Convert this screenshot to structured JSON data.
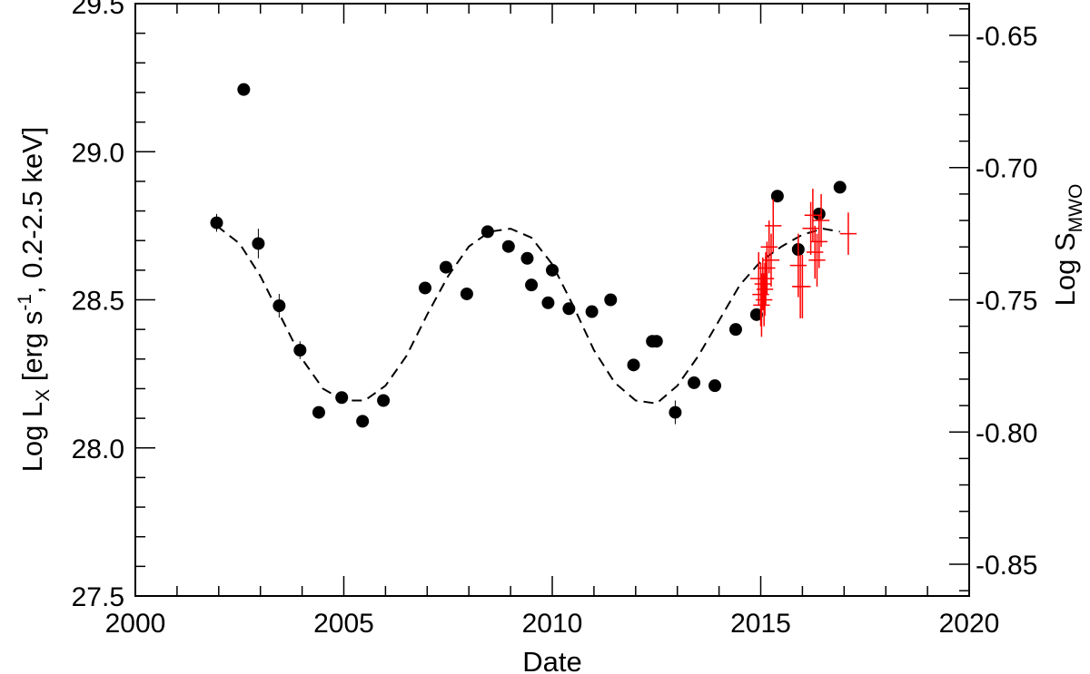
{
  "chart_data": {
    "type": "scatter",
    "xlabel": "Date",
    "ylabel_left": {
      "prefix": "Log L",
      "sub": "X",
      "mid1": " [erg s",
      "sup": "-1",
      "mid2": ", 0.2-2.5 keV]"
    },
    "ylabel_right": {
      "prefix": "Log S",
      "sub": "MWO"
    },
    "xlim": [
      2000,
      2020
    ],
    "ylim_left": [
      27.5,
      29.5
    ],
    "ylim_right": [
      -0.862,
      -0.638
    ],
    "x_ticks": [
      2000,
      2005,
      2010,
      2015,
      2020
    ],
    "x_tick_labels": [
      "2000",
      "2005",
      "2010",
      "2015",
      "2020"
    ],
    "y_left_ticks": [
      27.5,
      28.0,
      28.5,
      29.0,
      29.5
    ],
    "y_left_tick_labels": [
      "27.5",
      "28.0",
      "28.5",
      "29.0",
      "29.5"
    ],
    "y_right_ticks": [
      -0.85,
      -0.8,
      -0.75,
      -0.7,
      -0.65
    ],
    "y_right_tick_labels": [
      "-0.85",
      "-0.80",
      "-0.75",
      "-0.70",
      "-0.65"
    ],
    "series": [
      {
        "style": "filled-circle",
        "color": "#000000",
        "x": [
          2001.95,
          2002.6,
          2002.95,
          2003.45,
          2003.95,
          2004.4,
          2004.95,
          2005.45,
          2005.95,
          2006.95,
          2007.45,
          2007.95,
          2008.45,
          2008.95,
          2009.4,
          2009.5,
          2009.9,
          2010.0,
          2010.4,
          2010.95,
          2011.4,
          2011.95,
          2012.4,
          2012.5,
          2012.95,
          2013.4,
          2013.9,
          2014.4,
          2014.9,
          2015.4,
          2015.9,
          2016.4,
          2016.9
        ],
        "y": [
          28.76,
          29.21,
          28.69,
          28.48,
          28.33,
          28.12,
          28.17,
          28.09,
          28.16,
          28.54,
          28.61,
          28.52,
          28.73,
          28.68,
          28.64,
          28.55,
          28.49,
          28.6,
          28.47,
          28.46,
          28.5,
          28.28,
          28.36,
          28.36,
          28.12,
          28.22,
          28.21,
          28.4,
          28.45,
          28.85,
          28.67,
          28.79,
          28.88
        ],
        "yerr": [
          0.03,
          0.02,
          0.05,
          0.04,
          0.03,
          0.02,
          0.02,
          0.02,
          0.02,
          0.02,
          0.02,
          0.02,
          0.02,
          0.02,
          0.02,
          0.02,
          0.02,
          0.02,
          0.02,
          0.02,
          0.02,
          0.02,
          0.02,
          0.02,
          0.04,
          0.02,
          0.02,
          0.02,
          0.02,
          0.02,
          0.02,
          0.02,
          0.02
        ]
      },
      {
        "style": "cross-errorbar",
        "color": "#ff0000",
        "axis": "right",
        "x": [
          2014.95,
          2015.0,
          2015.02,
          2015.05,
          2015.08,
          2015.1,
          2015.12,
          2015.15,
          2015.2,
          2015.25,
          2015.3,
          2015.9,
          2015.95,
          2016.0,
          2016.2,
          2016.25,
          2016.3,
          2016.35,
          2016.4,
          2016.45,
          2017.1
        ],
        "y": [
          -0.742,
          -0.748,
          -0.752,
          -0.744,
          -0.75,
          -0.746,
          -0.742,
          -0.738,
          -0.73,
          -0.735,
          -0.722,
          -0.737,
          -0.745,
          -0.745,
          -0.723,
          -0.718,
          -0.732,
          -0.735,
          -0.728,
          -0.72,
          -0.725
        ],
        "yerr": [
          0.01,
          0.012,
          0.012,
          0.01,
          0.01,
          0.01,
          0.01,
          0.01,
          0.01,
          0.01,
          0.01,
          0.012,
          0.012,
          0.012,
          0.01,
          0.01,
          0.01,
          0.01,
          0.01,
          0.01,
          0.008
        ],
        "xerr": [
          0.2,
          0.2,
          0.2,
          0.2,
          0.2,
          0.2,
          0.2,
          0.2,
          0.2,
          0.2,
          0.2,
          0.2,
          0.2,
          0.2,
          0.2,
          0.2,
          0.2,
          0.2,
          0.2,
          0.2,
          0.2
        ]
      },
      {
        "style": "dashed-line",
        "color": "#000000",
        "x": [
          2001.95,
          2002.5,
          2003.0,
          2003.5,
          2004.0,
          2004.5,
          2005.0,
          2005.5,
          2006.0,
          2006.5,
          2007.0,
          2007.5,
          2008.0,
          2008.5,
          2009.0,
          2009.5,
          2010.0,
          2010.5,
          2011.0,
          2011.5,
          2012.0,
          2012.5,
          2013.0,
          2013.5,
          2014.0,
          2014.5,
          2015.0,
          2015.5,
          2016.0,
          2016.5,
          2016.9
        ],
        "y": [
          28.75,
          28.69,
          28.58,
          28.44,
          28.3,
          28.2,
          28.16,
          28.16,
          28.21,
          28.31,
          28.45,
          28.58,
          28.68,
          28.73,
          28.74,
          28.71,
          28.62,
          28.48,
          28.33,
          28.22,
          28.16,
          28.15,
          28.21,
          28.31,
          28.43,
          28.55,
          28.63,
          28.68,
          28.72,
          28.74,
          28.73
        ]
      }
    ]
  }
}
